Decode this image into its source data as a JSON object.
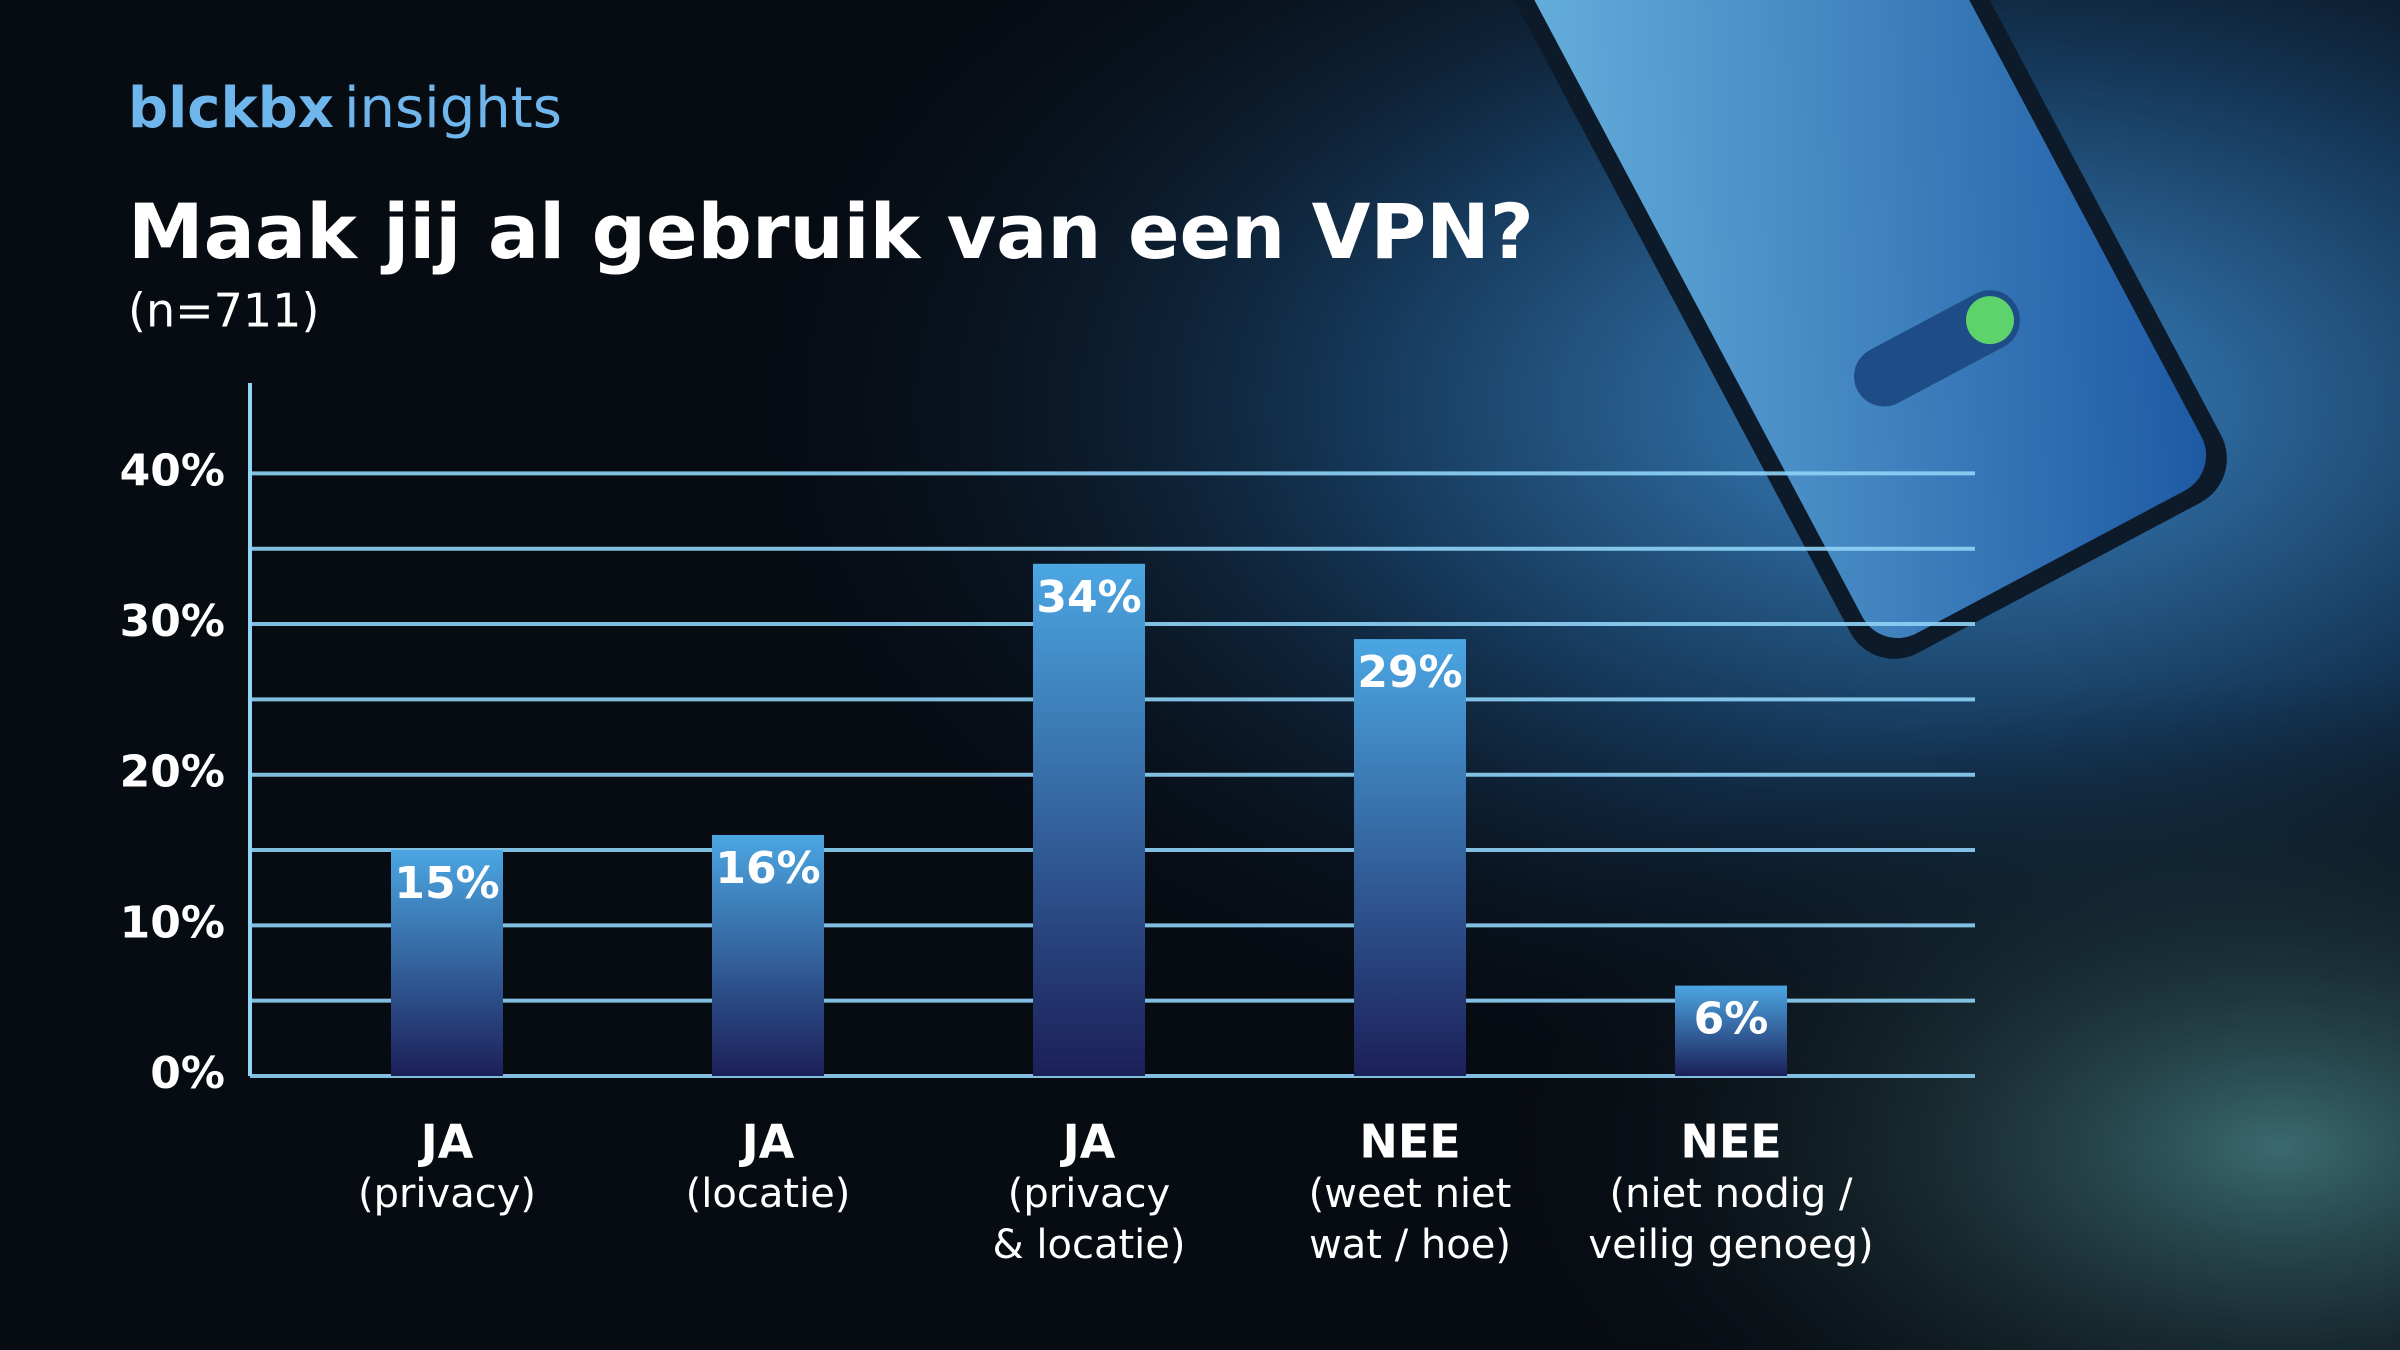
{
  "brand": {
    "name": "blckbx",
    "suffix": "insights"
  },
  "chart_data": {
    "type": "bar",
    "title": "Maak jij al gebruik van een VPN?",
    "subtitle": "(n=711)",
    "categories": [
      [
        "JA",
        "(privacy)"
      ],
      [
        "JA",
        "(locatie)"
      ],
      [
        "JA",
        "(privacy",
        "& locatie)"
      ],
      [
        "NEE",
        "(weet niet",
        "wat / hoe)"
      ],
      [
        "NEE",
        "(niet nodig /",
        "veilig genoeg)"
      ]
    ],
    "values": [
      15,
      16,
      34,
      29,
      6
    ],
    "value_labels": [
      "15%",
      "16%",
      "34%",
      "29%",
      "6%"
    ],
    "color": "#4ba6e2",
    "ylim": [
      0,
      46
    ],
    "yticks": [
      {
        "value": 0,
        "label": "0%"
      },
      {
        "value": 10,
        "label": "10%"
      },
      {
        "value": 20,
        "label": "20%"
      },
      {
        "value": 30,
        "label": "30%"
      },
      {
        "value": 40,
        "label": "40%"
      }
    ],
    "minor_yticks": [
      5,
      15,
      25,
      35
    ],
    "grid": true
  }
}
